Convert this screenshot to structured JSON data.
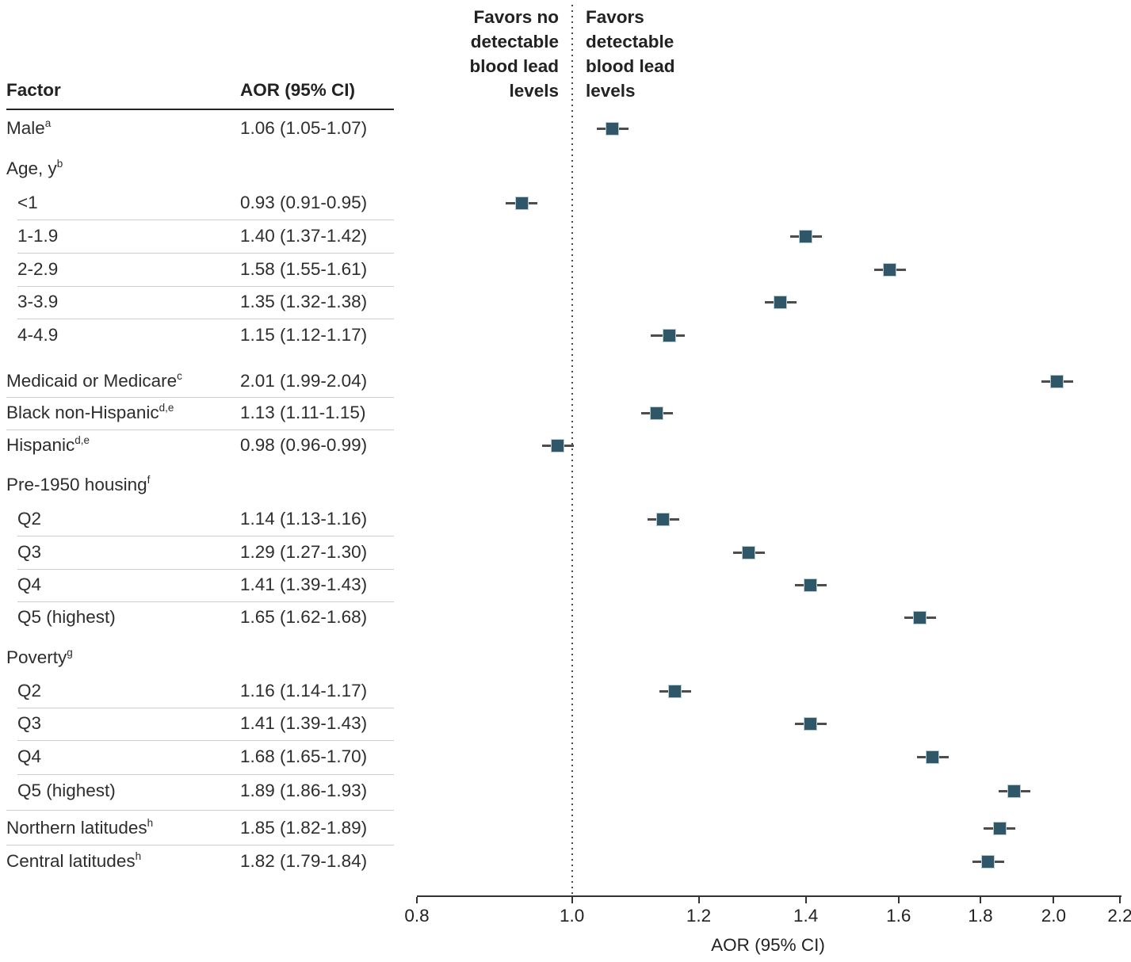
{
  "table": {
    "factor_header": "Factor",
    "aor_header": "AOR (95% CI)"
  },
  "annotations": {
    "favors_left_lines": [
      "Favors no",
      "detectable",
      "blood lead",
      "levels"
    ],
    "favors_right_lines": [
      "Favors",
      "detectable",
      "blood lead",
      "levels"
    ]
  },
  "colors": {
    "marker_fill": "#2f5767",
    "marker_border": "#b9cdd3",
    "whisker": "#4d4d4d",
    "reference_line": "#4a4a4a",
    "text": "#2d2d2d",
    "rule_dark": "#242424",
    "rule_light": "#cbcbcb",
    "axis": "#333333"
  },
  "chart_data": {
    "type": "forest",
    "xlabel": "AOR (95% CI)",
    "xscale": "log",
    "xlim": [
      0.8,
      2.2
    ],
    "xticks": [
      "0.8",
      "1.0",
      "1.2",
      "1.4",
      "1.6",
      "1.8",
      "2.0",
      "2.2"
    ],
    "reference_line": 1.0,
    "rows": [
      {
        "factor": "Male",
        "sup": "a",
        "indent": false,
        "header": false,
        "rule_above": false,
        "aor_text": "1.06 (1.05-1.07)",
        "est": 1.06,
        "lo": 1.05,
        "hi": 1.07
      },
      {
        "factor": "Age, y",
        "sup": "b",
        "indent": false,
        "header": true,
        "rule_above": false
      },
      {
        "factor": "<1",
        "indent": true,
        "header": false,
        "rule_above": false,
        "aor_text": "0.93 (0.91-0.95)",
        "est": 0.93,
        "lo": 0.91,
        "hi": 0.95
      },
      {
        "factor": "1-1.9",
        "indent": true,
        "header": false,
        "rule_above": true,
        "aor_text": "1.40 (1.37-1.42)",
        "est": 1.4,
        "lo": 1.37,
        "hi": 1.42
      },
      {
        "factor": "2-2.9",
        "indent": true,
        "header": false,
        "rule_above": true,
        "aor_text": "1.58 (1.55-1.61)",
        "est": 1.58,
        "lo": 1.55,
        "hi": 1.61
      },
      {
        "factor": "3-3.9",
        "indent": true,
        "header": false,
        "rule_above": true,
        "aor_text": "1.35 (1.32-1.38)",
        "est": 1.35,
        "lo": 1.32,
        "hi": 1.38
      },
      {
        "factor": "4-4.9",
        "indent": true,
        "header": false,
        "rule_above": true,
        "aor_text": "1.15 (1.12-1.17)",
        "est": 1.15,
        "lo": 1.12,
        "hi": 1.17
      },
      {
        "factor": "Medicaid or Medicare",
        "sup": "c",
        "indent": false,
        "header": false,
        "rule_above": false,
        "aor_text": "2.01 (1.99-2.04)",
        "est": 2.01,
        "lo": 1.99,
        "hi": 2.04
      },
      {
        "factor": "Black non-Hispanic",
        "sup": "d,e",
        "indent": false,
        "header": false,
        "rule_above": true,
        "aor_text": "1.13 (1.11-1.15)",
        "est": 1.13,
        "lo": 1.11,
        "hi": 1.15
      },
      {
        "factor": "Hispanic",
        "sup": "d,e",
        "indent": false,
        "header": false,
        "rule_above": true,
        "aor_text": "0.98 (0.96-0.99)",
        "est": 0.98,
        "lo": 0.96,
        "hi": 0.99
      },
      {
        "factor": "Pre-1950 housing",
        "sup": "f",
        "indent": false,
        "header": true,
        "rule_above": false
      },
      {
        "factor": "Q2",
        "indent": true,
        "header": false,
        "rule_above": false,
        "aor_text": "1.14 (1.13-1.16)",
        "est": 1.14,
        "lo": 1.13,
        "hi": 1.16
      },
      {
        "factor": "Q3",
        "indent": true,
        "header": false,
        "rule_above": true,
        "aor_text": "1.29 (1.27-1.30)",
        "est": 1.29,
        "lo": 1.27,
        "hi": 1.3
      },
      {
        "factor": "Q4",
        "indent": true,
        "header": false,
        "rule_above": true,
        "aor_text": "1.41 (1.39-1.43)",
        "est": 1.41,
        "lo": 1.39,
        "hi": 1.43
      },
      {
        "factor": "Q5 (highest)",
        "indent": true,
        "header": false,
        "rule_above": true,
        "aor_text": "1.65 (1.62-1.68)",
        "est": 1.65,
        "lo": 1.62,
        "hi": 1.68
      },
      {
        "factor": "Poverty",
        "sup": "g",
        "indent": false,
        "header": true,
        "rule_above": false
      },
      {
        "factor": "Q2",
        "indent": true,
        "header": false,
        "rule_above": false,
        "aor_text": "1.16 (1.14-1.17)",
        "est": 1.16,
        "lo": 1.14,
        "hi": 1.17
      },
      {
        "factor": "Q3",
        "indent": true,
        "header": false,
        "rule_above": true,
        "aor_text": "1.41 (1.39-1.43)",
        "est": 1.41,
        "lo": 1.39,
        "hi": 1.43
      },
      {
        "factor": "Q4",
        "indent": true,
        "header": false,
        "rule_above": true,
        "aor_text": "1.68 (1.65-1.70)",
        "est": 1.68,
        "lo": 1.65,
        "hi": 1.7
      },
      {
        "factor": "Q5 (highest)",
        "indent": true,
        "header": false,
        "rule_above": true,
        "aor_text": "1.89 (1.86-1.93)",
        "est": 1.89,
        "lo": 1.86,
        "hi": 1.93
      },
      {
        "factor": "Northern latitudes",
        "sup": "h",
        "indent": false,
        "header": false,
        "rule_above": true,
        "aor_text": "1.85 (1.82-1.89)",
        "est": 1.85,
        "lo": 1.82,
        "hi": 1.89
      },
      {
        "factor": "Central latitudes",
        "sup": "h",
        "indent": false,
        "header": false,
        "rule_above": true,
        "aor_text": "1.82 (1.79-1.84)",
        "est": 1.82,
        "lo": 1.79,
        "hi": 1.84
      }
    ]
  }
}
